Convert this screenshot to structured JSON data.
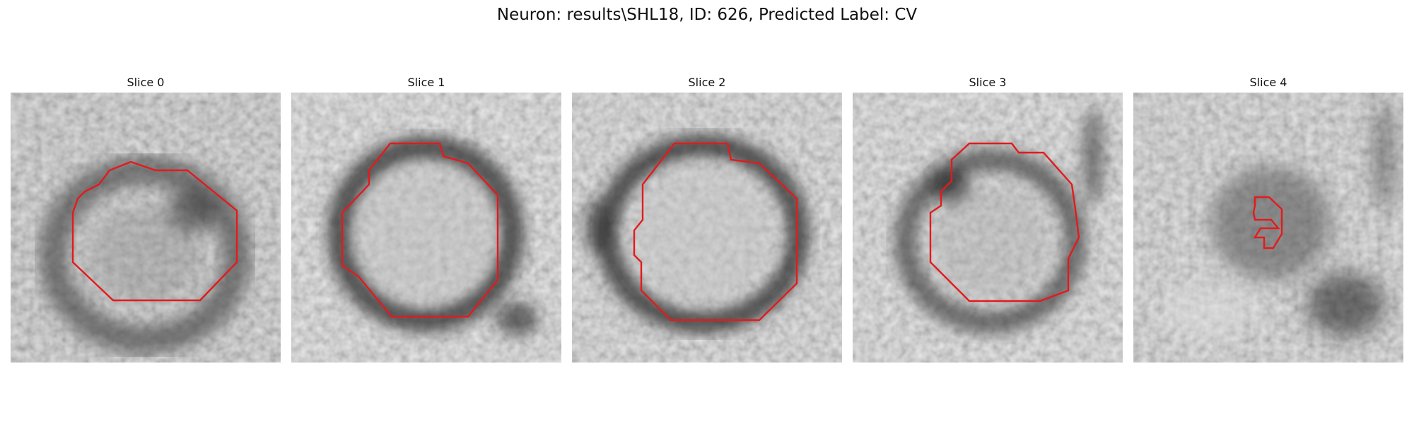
{
  "figure": {
    "title": "Neuron: results\\SHL18, ID: 626, Predicted Label: CV"
  },
  "colors": {
    "background": "#ffffff",
    "contour": "#e41a1c",
    "text": "#111111"
  },
  "panels": [
    {
      "title": "Slice 0",
      "contour": "large-octagon"
    },
    {
      "title": "Slice 1",
      "contour": "large-octagon"
    },
    {
      "title": "Slice 2",
      "contour": "large-octagon"
    },
    {
      "title": "Slice 3",
      "contour": "large-octagon"
    },
    {
      "title": "Slice 4",
      "contour": "small-blob"
    }
  ]
}
